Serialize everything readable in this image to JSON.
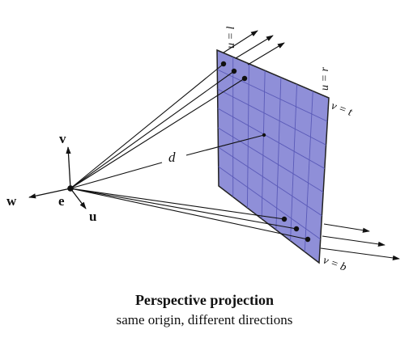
{
  "labels": {
    "v": "v",
    "w": "w",
    "e": "e",
    "u": "u",
    "d": "d",
    "u_eq_l": "u = l",
    "u_eq_r": "u = r",
    "v_eq_t": "v = t",
    "v_eq_b": "v = b"
  },
  "caption": {
    "title": "Perspective projection",
    "subtitle": "same origin, different directions"
  },
  "colors": {
    "plane_fill": "#8f8fd8",
    "plane_stroke": "#222222",
    "grid": "#5a5ab8",
    "lines": "#111111"
  }
}
